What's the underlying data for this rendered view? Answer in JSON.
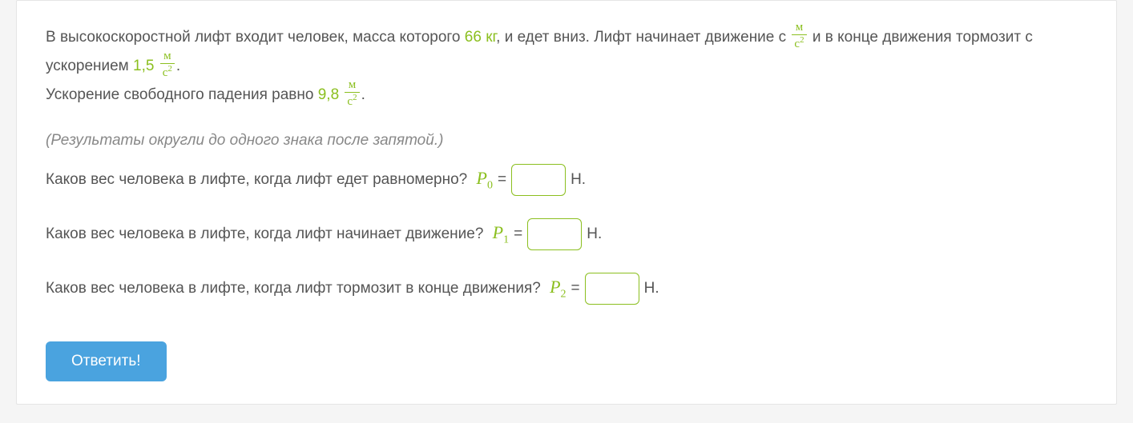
{
  "colors": {
    "highlight": "#8bbf1f",
    "text": "#555555",
    "note": "#888888",
    "button_bg": "#4aa3df",
    "button_text": "#ffffff",
    "input_border": "#8bbf1f",
    "card_bg": "#ffffff",
    "page_bg": "#f5f5f5"
  },
  "problem": {
    "part1": "В высокоскоростной лифт входит человек, масса которого ",
    "mass_value": "66",
    "mass_unit": "кг",
    "part2": ", и едет вниз. Лифт начинает движение с ",
    "unit_frac": {
      "num": "м",
      "den_base": "с",
      "den_exp": "2"
    },
    "part3": " и в конце движения тормозит с ускорением ",
    "a2_value": "1,5",
    "part4": "Ускорение свободного падения равно ",
    "g_value": "9,8"
  },
  "note": "(Результаты округли до одного знака после запятой.)",
  "questions": [
    {
      "text": "Каков вес человека в лифте, когда лифт едет равномерно? ",
      "var_letter": "P",
      "var_sub": "0",
      "unit_after": "Н."
    },
    {
      "text": "Каков вес человека в лифте, когда лифт начинает движение? ",
      "var_letter": "P",
      "var_sub": "1",
      "unit_after": "Н."
    },
    {
      "text": "Каков вес человека в лифте, когда лифт тормозит в конце движения? ",
      "var_letter": "P",
      "var_sub": "2",
      "unit_after": "Н."
    }
  ],
  "submit_label": "Ответить!"
}
